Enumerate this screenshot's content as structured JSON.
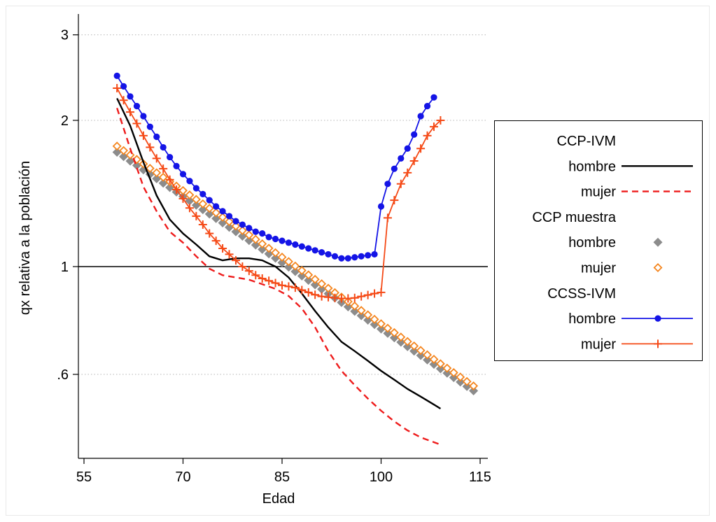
{
  "chart_data": {
    "type": "line",
    "xlabel": "Edad",
    "ylabel": "qx relativa a la población",
    "xlim": [
      55,
      115
    ],
    "ylim": [
      0.45,
      3.2
    ],
    "y_scale": "log",
    "x_ticks": [
      55,
      70,
      85,
      100,
      115
    ],
    "x_tick_labels": [
      "55",
      "70",
      "85",
      "100",
      "115"
    ],
    "y_ticks": [
      0.6,
      1,
      2,
      3
    ],
    "y_tick_labels": [
      ".6",
      "1",
      "2",
      "3"
    ],
    "y_grid": [
      0.6,
      2,
      3
    ],
    "reference_line": 1,
    "legend_position": "right",
    "legend_groups": [
      {
        "title": "CCP-IVM",
        "entries": [
          {
            "label": "hombre",
            "series": "ccp_ivm_hombre"
          },
          {
            "label": "mujer",
            "series": "ccp_ivm_mujer"
          }
        ]
      },
      {
        "title": "CCP muestra",
        "entries": [
          {
            "label": "hombre",
            "series": "ccp_muestra_hombre"
          },
          {
            "label": "mujer",
            "series": "ccp_muestra_mujer"
          }
        ]
      },
      {
        "title": "CCSS-IVM",
        "entries": [
          {
            "label": "hombre",
            "series": "ccss_ivm_hombre"
          },
          {
            "label": "mujer",
            "series": "ccss_ivm_mujer"
          }
        ]
      }
    ],
    "series": [
      {
        "id": "ccp_ivm_hombre",
        "style": "solid",
        "color": "#000000",
        "marker": "none",
        "points": [
          [
            60,
            2.22
          ],
          [
            62,
            1.95
          ],
          [
            64,
            1.64
          ],
          [
            66,
            1.4
          ],
          [
            68,
            1.25
          ],
          [
            70,
            1.17
          ],
          [
            72,
            1.11
          ],
          [
            74,
            1.05
          ],
          [
            75,
            1.04
          ],
          [
            76,
            1.03
          ],
          [
            78,
            1.04
          ],
          [
            80,
            1.04
          ],
          [
            82,
            1.03
          ],
          [
            84,
            1.0
          ],
          [
            86,
            0.95
          ],
          [
            88,
            0.88
          ],
          [
            90,
            0.81
          ],
          [
            92,
            0.75
          ],
          [
            94,
            0.7
          ],
          [
            96,
            0.67
          ],
          [
            98,
            0.64
          ],
          [
            100,
            0.61
          ],
          [
            102,
            0.585
          ],
          [
            104,
            0.56
          ],
          [
            106,
            0.54
          ],
          [
            108,
            0.52
          ],
          [
            109,
            0.51
          ]
        ]
      },
      {
        "id": "ccp_ivm_mujer",
        "style": "dashed",
        "color": "#ee1c1c",
        "marker": "none",
        "points": [
          [
            60,
            2.12
          ],
          [
            62,
            1.75
          ],
          [
            64,
            1.46
          ],
          [
            66,
            1.3
          ],
          [
            68,
            1.18
          ],
          [
            70,
            1.12
          ],
          [
            72,
            1.05
          ],
          [
            74,
            0.99
          ],
          [
            76,
            0.96
          ],
          [
            78,
            0.95
          ],
          [
            80,
            0.94
          ],
          [
            82,
            0.92
          ],
          [
            84,
            0.9
          ],
          [
            86,
            0.87
          ],
          [
            88,
            0.82
          ],
          [
            90,
            0.75
          ],
          [
            92,
            0.67
          ],
          [
            94,
            0.61
          ],
          [
            96,
            0.57
          ],
          [
            98,
            0.535
          ],
          [
            100,
            0.505
          ],
          [
            102,
            0.48
          ],
          [
            104,
            0.46
          ],
          [
            106,
            0.445
          ],
          [
            108,
            0.435
          ],
          [
            109,
            0.43
          ]
        ]
      },
      {
        "id": "ccp_muestra_hombre",
        "style": "markers",
        "color": "#8c8c8c",
        "marker": "diamond-filled",
        "x_start": 60,
        "x_end": 114,
        "y_start": 1.72,
        "y_end": 0.555
      },
      {
        "id": "ccp_muestra_mujer",
        "style": "markers",
        "color": "#f5861f",
        "marker": "diamond-open",
        "x_start": 60,
        "x_end": 114,
        "y_start": 1.77,
        "y_end": 0.568
      },
      {
        "id": "ccss_ivm_hombre",
        "style": "line-markers",
        "color": "#1414e6",
        "marker": "circle",
        "points": [
          [
            60,
            2.47
          ],
          [
            61,
            2.35
          ],
          [
            62,
            2.24
          ],
          [
            63,
            2.14
          ],
          [
            64,
            2.04
          ],
          [
            65,
            1.94
          ],
          [
            66,
            1.85
          ],
          [
            67,
            1.76
          ],
          [
            68,
            1.68
          ],
          [
            69,
            1.61
          ],
          [
            70,
            1.55
          ],
          [
            71,
            1.5
          ],
          [
            72,
            1.45
          ],
          [
            73,
            1.41
          ],
          [
            74,
            1.37
          ],
          [
            75,
            1.33
          ],
          [
            76,
            1.3
          ],
          [
            77,
            1.27
          ],
          [
            78,
            1.24
          ],
          [
            79,
            1.22
          ],
          [
            80,
            1.2
          ],
          [
            81,
            1.18
          ],
          [
            82,
            1.17
          ],
          [
            83,
            1.15
          ],
          [
            84,
            1.14
          ],
          [
            85,
            1.13
          ],
          [
            86,
            1.12
          ],
          [
            87,
            1.11
          ],
          [
            88,
            1.1
          ],
          [
            89,
            1.09
          ],
          [
            90,
            1.08
          ],
          [
            91,
            1.07
          ],
          [
            92,
            1.06
          ],
          [
            93,
            1.05
          ],
          [
            94,
            1.04
          ],
          [
            95,
            1.04
          ],
          [
            96,
            1.045
          ],
          [
            97,
            1.05
          ],
          [
            98,
            1.055
          ],
          [
            99,
            1.06
          ],
          [
            100,
            1.33
          ],
          [
            101,
            1.48
          ],
          [
            102,
            1.59
          ],
          [
            103,
            1.67
          ],
          [
            104,
            1.75
          ],
          [
            105,
            1.87
          ],
          [
            106,
            2.04
          ],
          [
            107,
            2.14
          ],
          [
            108,
            2.23
          ]
        ]
      },
      {
        "id": "ccss_ivm_mujer",
        "style": "line-markers",
        "color": "#f54a17",
        "marker": "plus",
        "points": [
          [
            60,
            2.33
          ],
          [
            61,
            2.2
          ],
          [
            62,
            2.08
          ],
          [
            63,
            1.97
          ],
          [
            64,
            1.86
          ],
          [
            65,
            1.76
          ],
          [
            66,
            1.67
          ],
          [
            67,
            1.59
          ],
          [
            68,
            1.51
          ],
          [
            69,
            1.44
          ],
          [
            70,
            1.38
          ],
          [
            71,
            1.32
          ],
          [
            72,
            1.27
          ],
          [
            73,
            1.22
          ],
          [
            74,
            1.17
          ],
          [
            75,
            1.13
          ],
          [
            76,
            1.09
          ],
          [
            77,
            1.06
          ],
          [
            78,
            1.03
          ],
          [
            79,
            1.0
          ],
          [
            80,
            0.98
          ],
          [
            81,
            0.96
          ],
          [
            82,
            0.945
          ],
          [
            83,
            0.935
          ],
          [
            84,
            0.925
          ],
          [
            85,
            0.915
          ],
          [
            86,
            0.91
          ],
          [
            87,
            0.905
          ],
          [
            88,
            0.895
          ],
          [
            89,
            0.885
          ],
          [
            90,
            0.875
          ],
          [
            91,
            0.868
          ],
          [
            92,
            0.865
          ],
          [
            93,
            0.862
          ],
          [
            94,
            0.86
          ],
          [
            95,
            0.86
          ],
          [
            96,
            0.862
          ],
          [
            97,
            0.868
          ],
          [
            98,
            0.874
          ],
          [
            99,
            0.88
          ],
          [
            100,
            0.885
          ],
          [
            101,
            1.26
          ],
          [
            102,
            1.37
          ],
          [
            103,
            1.48
          ],
          [
            104,
            1.56
          ],
          [
            105,
            1.65
          ],
          [
            106,
            1.75
          ],
          [
            107,
            1.86
          ],
          [
            108,
            1.94
          ],
          [
            109,
            2.0
          ]
        ]
      }
    ]
  }
}
